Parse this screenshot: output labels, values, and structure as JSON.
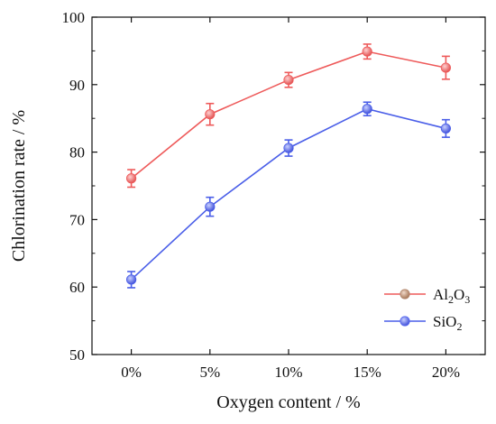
{
  "chart_data": {
    "type": "line",
    "categories": [
      "0%",
      "5%",
      "10%",
      "15%",
      "20%"
    ],
    "xlabel": "Oxygen content / %",
    "ylabel": "Chlorination rate / %",
    "ylim": [
      50,
      100
    ],
    "yticks": [
      "50",
      "60",
      "70",
      "80",
      "90",
      "100"
    ],
    "grid": false,
    "legend_position": "bottom-right",
    "series": [
      {
        "name_parts": [
          "Al",
          "2",
          "O",
          "3"
        ],
        "values": [
          76.1,
          85.6,
          90.7,
          94.9,
          92.5
        ],
        "errors": [
          1.3,
          1.6,
          1.1,
          1.1,
          1.7
        ],
        "line_color": "#ee5a5a",
        "marker_color": "#f07676",
        "legend_marker_color": "#b48a72"
      },
      {
        "name_parts": [
          "SiO",
          "2"
        ],
        "values": [
          61.1,
          71.9,
          80.6,
          86.4,
          83.5
        ],
        "errors": [
          1.2,
          1.4,
          1.2,
          1.0,
          1.3
        ],
        "line_color": "#4a5ee8",
        "marker_color": "#5a6cf0",
        "legend_marker_color": "#5a6cf0"
      }
    ]
  }
}
